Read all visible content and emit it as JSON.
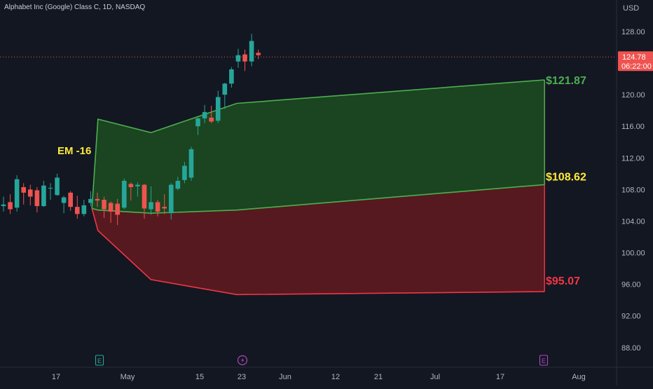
{
  "title": "Alphabet Inc (Google) Class C, 1D, NASDAQ",
  "currency": "USD",
  "price_label": {
    "price": "124.78",
    "time": "06:22:00"
  },
  "colors": {
    "background": "#131722",
    "up": "#26a69a",
    "down": "#ef5350",
    "upper_band": "#4caf50",
    "lower_band": "#f23645",
    "upper_fill": "#1b4721",
    "lower_fill": "#5a1920",
    "em_label": "#ffeb3b",
    "mid_label": "#ffeb3b",
    "axis_text": "#b2b5be"
  },
  "chart_data": {
    "type": "candlestick",
    "title": "Alphabet Inc (Google) Class C, 1D, NASDAQ",
    "y_axis": {
      "unit": "USD",
      "ticks": [
        "88.00",
        "92.00",
        "96.00",
        "100.00",
        "104.00",
        "108.00",
        "112.00",
        "116.00",
        "120.00",
        "124.00",
        "128.00"
      ],
      "range": [
        85.5,
        129.5
      ]
    },
    "x_axis": {
      "ticks": [
        "17",
        "May",
        "15",
        "23",
        "Jun",
        "12",
        "21",
        "Jul",
        "17",
        "Aug"
      ]
    },
    "candles": [
      {
        "date": "Apr 10",
        "o": 105.9,
        "h": 107.1,
        "l": 105.2,
        "c": 106.1
      },
      {
        "date": "Apr 11",
        "o": 106.4,
        "h": 107.4,
        "l": 104.9,
        "c": 105.5
      },
      {
        "date": "Apr 12",
        "o": 105.7,
        "h": 109.8,
        "l": 105.2,
        "c": 109.3
      },
      {
        "date": "Apr 13",
        "o": 108.3,
        "h": 108.8,
        "l": 106.1,
        "c": 107.6
      },
      {
        "date": "Apr 14",
        "o": 108.0,
        "h": 108.6,
        "l": 106.0,
        "c": 107.1
      },
      {
        "date": "Apr 17",
        "o": 107.9,
        "h": 108.3,
        "l": 105.1,
        "c": 105.9
      },
      {
        "date": "Apr 18",
        "o": 105.9,
        "h": 109.1,
        "l": 105.8,
        "c": 108.5
      },
      {
        "date": "Apr 19",
        "o": 108.2,
        "h": 108.8,
        "l": 106.7,
        "c": 108.2
      },
      {
        "date": "Apr 20",
        "o": 107.3,
        "h": 110.0,
        "l": 107.2,
        "c": 109.5
      },
      {
        "date": "Apr 21",
        "o": 106.3,
        "h": 107.2,
        "l": 105.0,
        "c": 107.0
      },
      {
        "date": "Apr 24",
        "o": 107.6,
        "h": 107.8,
        "l": 105.3,
        "c": 105.8
      },
      {
        "date": "Apr 25",
        "o": 105.8,
        "h": 107.2,
        "l": 104.3,
        "c": 104.9
      },
      {
        "date": "Apr 26",
        "o": 104.9,
        "h": 106.7,
        "l": 104.6,
        "c": 106.0
      },
      {
        "date": "Apr 27",
        "o": 106.3,
        "h": 107.8,
        "l": 105.9,
        "c": 106.8
      },
      {
        "date": "Apr 28",
        "o": 106.8,
        "h": 107.6,
        "l": 105.8,
        "c": 106.6
      },
      {
        "date": "May 1",
        "o": 106.7,
        "h": 107.1,
        "l": 104.4,
        "c": 105.5
      },
      {
        "date": "May 2",
        "o": 106.3,
        "h": 106.5,
        "l": 103.8,
        "c": 105.2
      },
      {
        "date": "May 3",
        "o": 106.2,
        "h": 106.8,
        "l": 103.5,
        "c": 104.8
      },
      {
        "date": "May 4",
        "o": 105.7,
        "h": 109.4,
        "l": 105.5,
        "c": 109.1
      },
      {
        "date": "May 5",
        "o": 108.7,
        "h": 108.9,
        "l": 106.6,
        "c": 108.3
      },
      {
        "date": "May 8",
        "o": 108.4,
        "h": 108.9,
        "l": 107.1,
        "c": 108.6
      },
      {
        "date": "May 9",
        "o": 108.6,
        "h": 108.7,
        "l": 104.3,
        "c": 105.6
      },
      {
        "date": "May 10",
        "o": 105.5,
        "h": 108.4,
        "l": 104.8,
        "c": 106.4
      },
      {
        "date": "May 11",
        "o": 106.4,
        "h": 106.7,
        "l": 104.6,
        "c": 105.2
      },
      {
        "date": "May 12",
        "o": 105.8,
        "h": 107.4,
        "l": 104.9,
        "c": 105.6
      },
      {
        "date": "May 15",
        "o": 105.0,
        "h": 108.8,
        "l": 104.2,
        "c": 108.6
      },
      {
        "date": "May 16",
        "o": 108.1,
        "h": 109.6,
        "l": 107.9,
        "c": 109.1
      },
      {
        "date": "May 17",
        "o": 109.2,
        "h": 111.5,
        "l": 108.8,
        "c": 111.0
      },
      {
        "date": "May 18",
        "o": 109.5,
        "h": 113.4,
        "l": 109.1,
        "c": 113.1
      },
      {
        "date": "May 19",
        "o": 116.0,
        "h": 117.1,
        "l": 114.9,
        "c": 117.0
      },
      {
        "date": "May 22",
        "o": 117.0,
        "h": 118.7,
        "l": 116.4,
        "c": 117.8
      },
      {
        "date": "May 23",
        "o": 117.1,
        "h": 118.6,
        "l": 116.4,
        "c": 116.6
      },
      {
        "date": "May 24",
        "o": 116.7,
        "h": 120.5,
        "l": 116.4,
        "c": 119.7
      },
      {
        "date": "May 25",
        "o": 120.0,
        "h": 121.5,
        "l": 118.2,
        "c": 121.4
      },
      {
        "date": "May 26",
        "o": 121.4,
        "h": 123.5,
        "l": 120.9,
        "c": 123.2
      },
      {
        "date": "May 30",
        "o": 124.2,
        "h": 125.8,
        "l": 123.4,
        "c": 125.0
      },
      {
        "date": "May 31",
        "o": 125.1,
        "h": 125.7,
        "l": 123.0,
        "c": 124.2
      },
      {
        "date": "Jun 1",
        "o": 124.2,
        "h": 127.7,
        "l": 123.6,
        "c": 126.8
      },
      {
        "date": "Jun 2",
        "o": 125.3,
        "h": 125.7,
        "l": 124.5,
        "c": 125.0
      }
    ],
    "last_price": 124.78,
    "expected_move": {
      "label": "EM -16",
      "upper_band": [
        [
          0,
          105.6
        ],
        [
          1,
          116.9
        ],
        [
          4,
          115.2
        ],
        [
          9,
          118.9
        ],
        [
          28,
          121.87
        ]
      ],
      "middle_band": [
        [
          0,
          105.6
        ],
        [
          1,
          105.4
        ],
        [
          4,
          105.0
        ],
        [
          9,
          105.4
        ],
        [
          28,
          108.62
        ]
      ],
      "lower_band": [
        [
          0,
          105.6
        ],
        [
          1,
          102.8
        ],
        [
          4,
          96.6
        ],
        [
          9,
          94.7
        ],
        [
          28,
          95.07
        ]
      ],
      "upper_label": "$121.87",
      "middle_label": "$108.62",
      "lower_label": "$95.07"
    },
    "event_markers": [
      {
        "label": "E",
        "position": "Apr 25"
      },
      {
        "label": "⚡",
        "position": "Jun 1"
      },
      {
        "label": "E",
        "position": "Jul 25"
      }
    ]
  }
}
